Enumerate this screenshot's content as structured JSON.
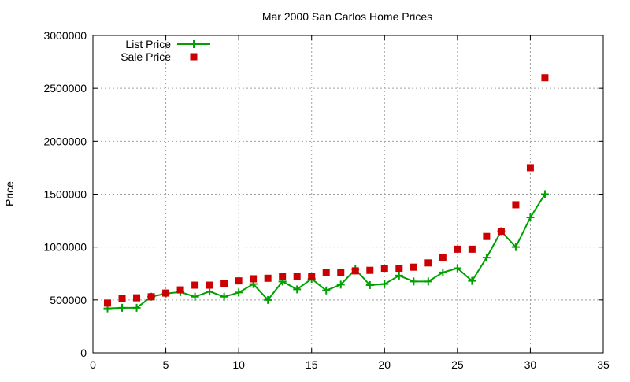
{
  "chart_data": {
    "type": "line",
    "title": "Mar 2000 San Carlos Home Prices",
    "xlabel": "",
    "ylabel": "Price",
    "xlim": [
      0,
      35
    ],
    "ylim": [
      0,
      3000000
    ],
    "xticks": [
      0,
      5,
      10,
      15,
      20,
      25,
      30,
      35
    ],
    "yticks": [
      0,
      500000,
      1000000,
      1500000,
      2000000,
      2500000,
      3000000
    ],
    "grid": true,
    "legend_position": "top-left",
    "x": [
      1,
      2,
      3,
      4,
      5,
      6,
      7,
      8,
      9,
      10,
      11,
      12,
      13,
      14,
      15,
      16,
      17,
      18,
      19,
      20,
      21,
      22,
      23,
      24,
      25,
      26,
      27,
      28,
      29,
      30,
      31
    ],
    "series": [
      {
        "name": "List Price",
        "style": "linespoints",
        "color": "#00a000",
        "values": [
          420000,
          425000,
          425000,
          530000,
          560000,
          575000,
          530000,
          580000,
          530000,
          570000,
          650000,
          500000,
          675000,
          600000,
          700000,
          590000,
          645000,
          790000,
          640000,
          650000,
          730000,
          675000,
          675000,
          760000,
          800000,
          680000,
          900000,
          1150000,
          1000000,
          1280000,
          1500000
        ]
      },
      {
        "name": "Sale Price",
        "style": "points",
        "color": "#cc0000",
        "values": [
          470000,
          515000,
          520000,
          530000,
          565000,
          595000,
          640000,
          640000,
          655000,
          680000,
          700000,
          705000,
          725000,
          725000,
          725000,
          760000,
          760000,
          775000,
          780000,
          800000,
          800000,
          810000,
          850000,
          900000,
          980000,
          980000,
          1100000,
          1150000,
          1400000,
          1750000,
          2600000
        ]
      }
    ]
  }
}
